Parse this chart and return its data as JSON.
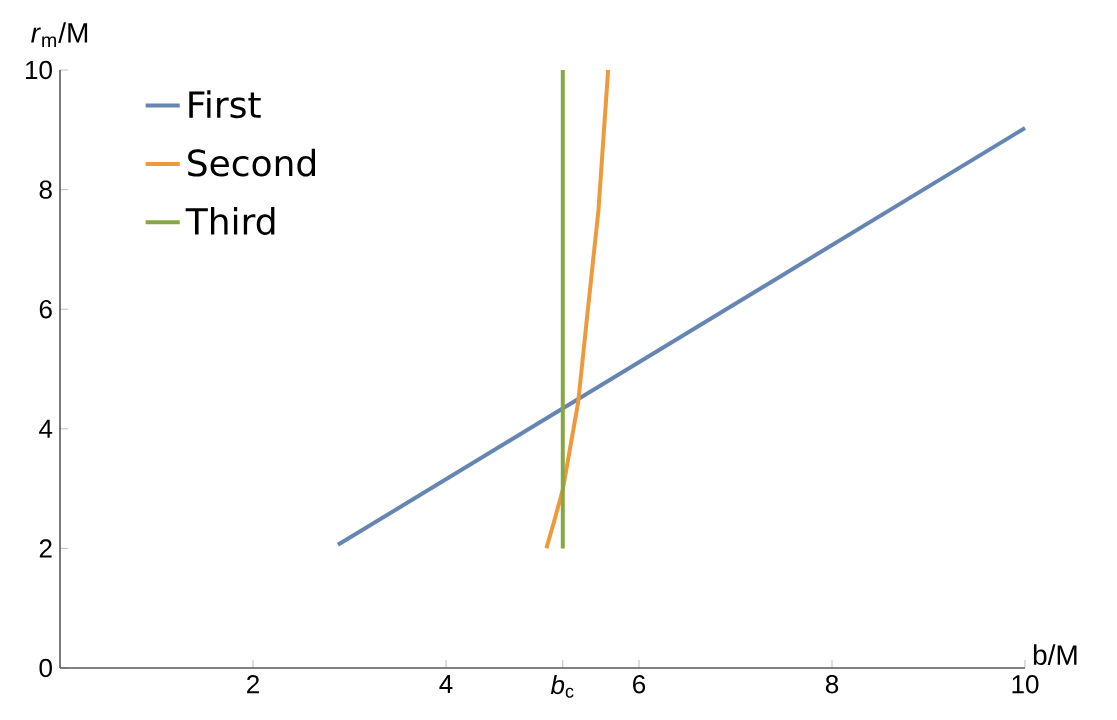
{
  "chart_data": {
    "type": "line",
    "xlabel": "b/M",
    "ylabel": "*r*$_{m}$/M",
    "xlim": [
      0,
      10
    ],
    "ylim": [
      0,
      10
    ],
    "xticks": [
      2,
      4,
      {
        "value": 5.21,
        "label": "*b*$_{c}$"
      },
      6,
      8,
      10
    ],
    "yticks": [
      0,
      2,
      4,
      6,
      8,
      10
    ],
    "grid": false,
    "legend": "top left",
    "marker": "none",
    "line_style": "solid",
    "series": [
      {
        "name": "First",
        "color": "#6685b3",
        "x": [
          2.88,
          10
        ],
        "values": [
          2.06,
          9.03
        ]
      },
      {
        "name": "Second",
        "color": "#ee9a3c",
        "x": [
          5.04,
          5.12,
          5.21,
          5.37,
          5.47,
          5.58,
          5.68
        ],
        "values": [
          2.0,
          2.45,
          2.98,
          4.45,
          5.99,
          7.66,
          10
        ]
      },
      {
        "name": "Third",
        "color": "#86a843",
        "x": [
          5.21,
          5.21
        ],
        "values": [
          2.0,
          10
        ]
      }
    ]
  }
}
